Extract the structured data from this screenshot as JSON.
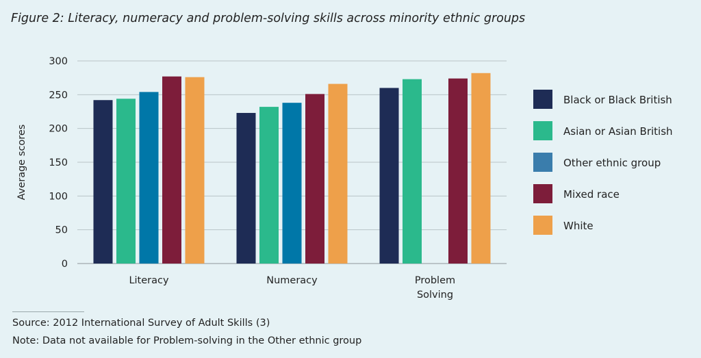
{
  "figure": {
    "title": "Figure 2: Literacy, numeracy and problem-solving skills across minority ethnic groups",
    "source": "Source: 2012 International Survey of Adult Skills (3)",
    "note": "Note: Data not available for Problem-solving in the Other ethnic group"
  },
  "chart_data": {
    "type": "bar",
    "title": "Figure 2: Literacy, numeracy and problem-solving skills across minority ethnic groups",
    "ylabel": "Average scores",
    "xlabel": "",
    "ylim": [
      0,
      300
    ],
    "yticks": [
      0,
      50,
      100,
      150,
      200,
      250,
      300
    ],
    "grid": true,
    "legend_position": "right",
    "categories": [
      {
        "lines": [
          "Literacy"
        ]
      },
      {
        "lines": [
          "Numeracy"
        ]
      },
      {
        "lines": [
          "Problem",
          "Solving"
        ]
      }
    ],
    "series": [
      {
        "name": "Black or Black British",
        "color": "#1e2c55",
        "values": [
          242,
          223,
          260
        ]
      },
      {
        "name": "Asian or Asian British",
        "color": "#2bb98c",
        "values": [
          244,
          232,
          273
        ]
      },
      {
        "name": "Other ethnic group",
        "color": "#0077a8",
        "legend_color": "#3a7dac",
        "values": [
          254,
          238,
          null
        ]
      },
      {
        "name": "Mixed race",
        "color": "#7d1d3a",
        "values": [
          277,
          251,
          274
        ]
      },
      {
        "name": "White",
        "color": "#eea04a",
        "values": [
          276,
          266,
          282
        ]
      }
    ]
  }
}
